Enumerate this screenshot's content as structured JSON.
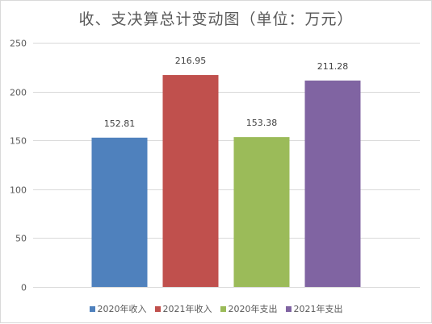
{
  "title": "收、支决算总计变动图（单位：万元）",
  "chart_data": {
    "type": "bar",
    "title": "收、支决算总计变动图（单位：万元）",
    "categories": [
      "2020年收入",
      "2021年收入",
      "2020年支出",
      "2021年支出"
    ],
    "values": [
      152.81,
      216.95,
      153.38,
      211.28
    ],
    "value_labels": [
      "152.81",
      "216.95",
      "153.38",
      "211.28"
    ],
    "colors": [
      "#4f81bd",
      "#c0504d",
      "#9bbb59",
      "#8064a2"
    ],
    "ylim": [
      0,
      250
    ],
    "yticks": [
      0,
      50,
      100,
      150,
      200,
      250
    ],
    "ytick_labels": [
      "0",
      "50",
      "100",
      "150",
      "200",
      "250"
    ],
    "xlabel": "",
    "ylabel": "",
    "grid": true,
    "legend_position": "bottom"
  },
  "legend": [
    {
      "label": "2020年收入",
      "color": "#4f81bd"
    },
    {
      "label": "2021年收入",
      "color": "#c0504d"
    },
    {
      "label": "2020年支出",
      "color": "#9bbb59"
    },
    {
      "label": "2021年支出",
      "color": "#8064a2"
    }
  ]
}
